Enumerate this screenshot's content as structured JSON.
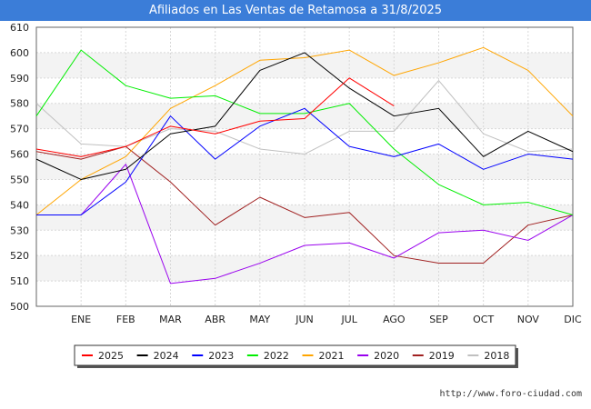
{
  "title": "Afiliados en Las Ventas de Retamosa a 31/8/2025",
  "footer": "http://www.foro-ciudad.com",
  "chart_data": {
    "type": "line",
    "title": "Afiliados en Las Ventas de Retamosa a 31/8/2025",
    "xlabel": "",
    "ylabel": "",
    "categories": [
      "",
      "ENE",
      "FEB",
      "MAR",
      "ABR",
      "MAY",
      "JUN",
      "JUL",
      "AGO",
      "SEP",
      "OCT",
      "NOV",
      "DIC"
    ],
    "ylim": [
      500,
      610
    ],
    "yticks": [
      500,
      510,
      520,
      530,
      540,
      550,
      560,
      570,
      580,
      590,
      600,
      610
    ],
    "grid": true,
    "legend_position": "bottom",
    "series": [
      {
        "name": "2025",
        "color": "#ff0000",
        "values": [
          562,
          559,
          563,
          571,
          568,
          573,
          574,
          590,
          579,
          null,
          null,
          null,
          null
        ]
      },
      {
        "name": "2024",
        "color": "#000000",
        "values": [
          558,
          550,
          554,
          568,
          571,
          593,
          600,
          586,
          575,
          578,
          559,
          569,
          561
        ]
      },
      {
        "name": "2023",
        "color": "#0000ff",
        "values": [
          536,
          536,
          549,
          575,
          558,
          571,
          578,
          563,
          559,
          564,
          554,
          560,
          558
        ]
      },
      {
        "name": "2022",
        "color": "#00ee00",
        "values": [
          575,
          601,
          587,
          582,
          583,
          576,
          576,
          580,
          562,
          548,
          540,
          541,
          536
        ]
      },
      {
        "name": "2021",
        "color": "#ffa500",
        "values": [
          536,
          550,
          559,
          578,
          587,
          597,
          598,
          601,
          591,
          596,
          602,
          593,
          575
        ]
      },
      {
        "name": "2020",
        "color": "#9900ee",
        "values": [
          536,
          536,
          556,
          509,
          511,
          517,
          524,
          525,
          519,
          529,
          530,
          526,
          536
        ]
      },
      {
        "name": "2019",
        "color": "#a02020",
        "values": [
          561,
          558,
          563,
          549,
          532,
          543,
          535,
          537,
          520,
          517,
          517,
          532,
          536
        ]
      },
      {
        "name": "2018",
        "color": "#c0c0c0",
        "values": [
          580,
          564,
          563,
          570,
          569,
          562,
          560,
          569,
          569,
          589,
          568,
          561,
          562
        ]
      }
    ]
  }
}
